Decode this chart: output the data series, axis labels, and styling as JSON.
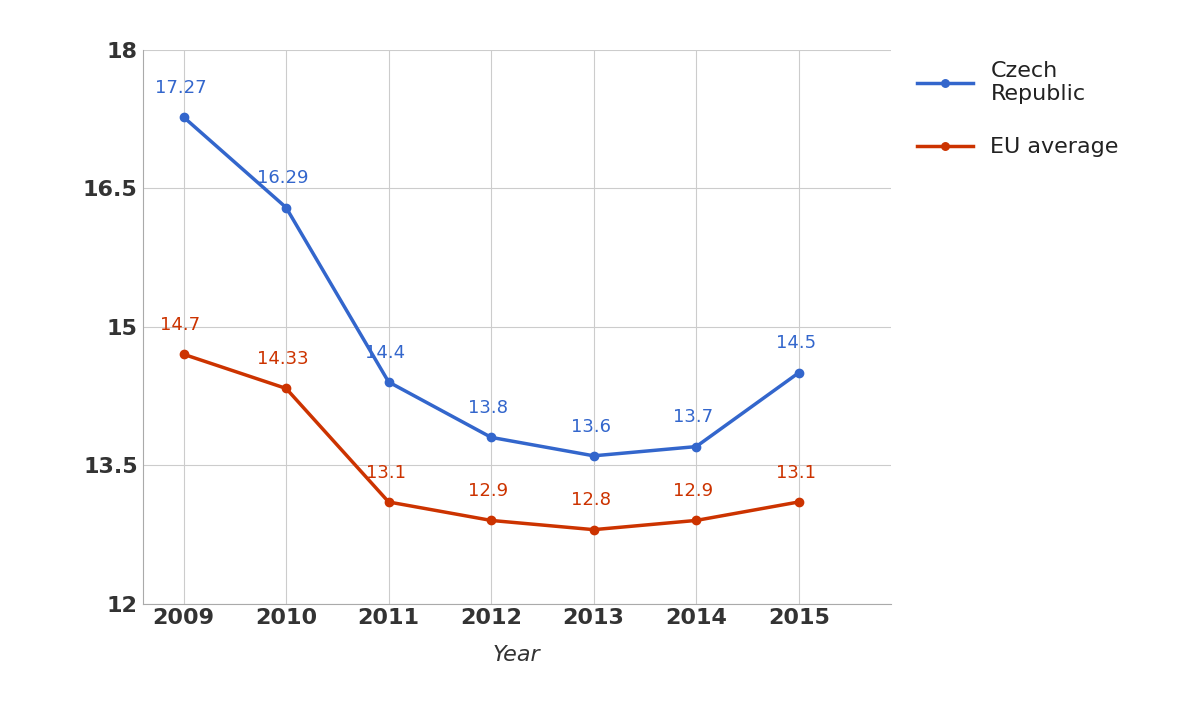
{
  "years": [
    2009,
    2010,
    2011,
    2012,
    2013,
    2014,
    2015
  ],
  "czech_republic": [
    17.27,
    16.29,
    14.4,
    13.8,
    13.6,
    13.7,
    14.5
  ],
  "eu_average": [
    14.7,
    14.33,
    13.1,
    12.9,
    12.8,
    12.9,
    13.1
  ],
  "czech_color": "#3366cc",
  "eu_color": "#cc3300",
  "czech_label": "Czech\nRepublic",
  "eu_label": "EU average",
  "xlabel": "Year",
  "ylim": [
    12,
    18
  ],
  "yticks": [
    12,
    13.5,
    15,
    16.5,
    18
  ],
  "background_color": "#ffffff",
  "grid_color": "#cccccc",
  "line_width": 2.5,
  "marker_size": 6,
  "label_fontsize": 13,
  "tick_fontsize": 16,
  "xlabel_fontsize": 16,
  "legend_fontsize": 16,
  "annotation_color_czech": "#3366cc",
  "annotation_color_eu": "#cc3300"
}
